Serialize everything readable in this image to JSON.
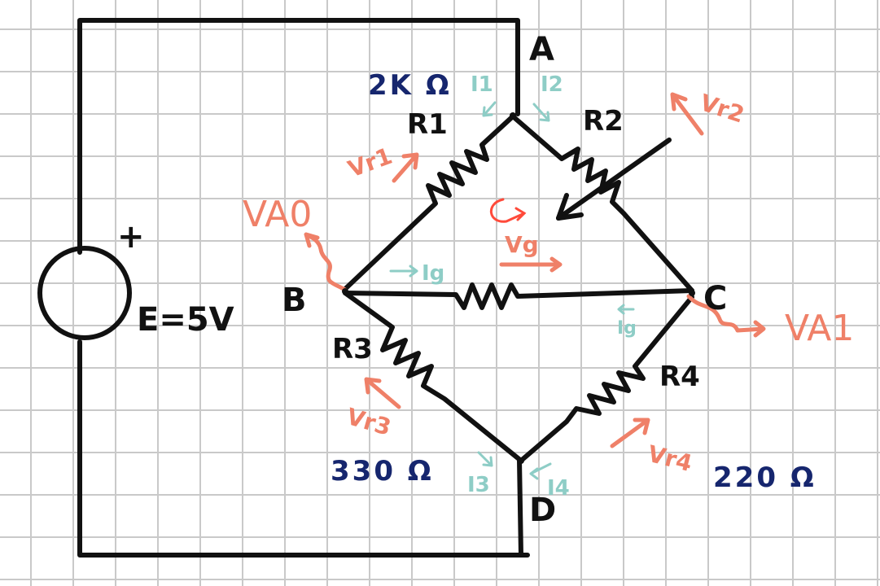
{
  "colors": {
    "paper": "#ffffff",
    "grid": "#c9c9c9",
    "wire": "#111111",
    "resistance_values": "#16266e",
    "currents": "#8ecdc6",
    "voltages": "#ef8068",
    "loop": "#ff4a3a"
  },
  "source": {
    "plus": "+",
    "label": "E=5V"
  },
  "nodes": {
    "a": "A",
    "b": "B",
    "c": "C",
    "d": "D"
  },
  "resistors": {
    "r1": {
      "name": "R1",
      "value": "2K Ω"
    },
    "r2": {
      "name": "R2"
    },
    "r3": {
      "name": "R3",
      "value": "330 Ω"
    },
    "r4": {
      "name": "R4",
      "value": "220 Ω"
    }
  },
  "currents": {
    "i1": "I1",
    "i2": "I2",
    "i3": "I3",
    "i4": "I4",
    "ig": "Ig",
    "ig_c": "Ig"
  },
  "voltages": {
    "vr1": "Vr1",
    "vr2": "Vr2",
    "vr3": "Vr3",
    "vr4": "Vr4",
    "vg": "Vg",
    "va0": "VA0",
    "va1": "VA1"
  },
  "icons": [
    "voltage-source-icon",
    "loop-direction-icon",
    "potentiometer-arrow-icon"
  ]
}
